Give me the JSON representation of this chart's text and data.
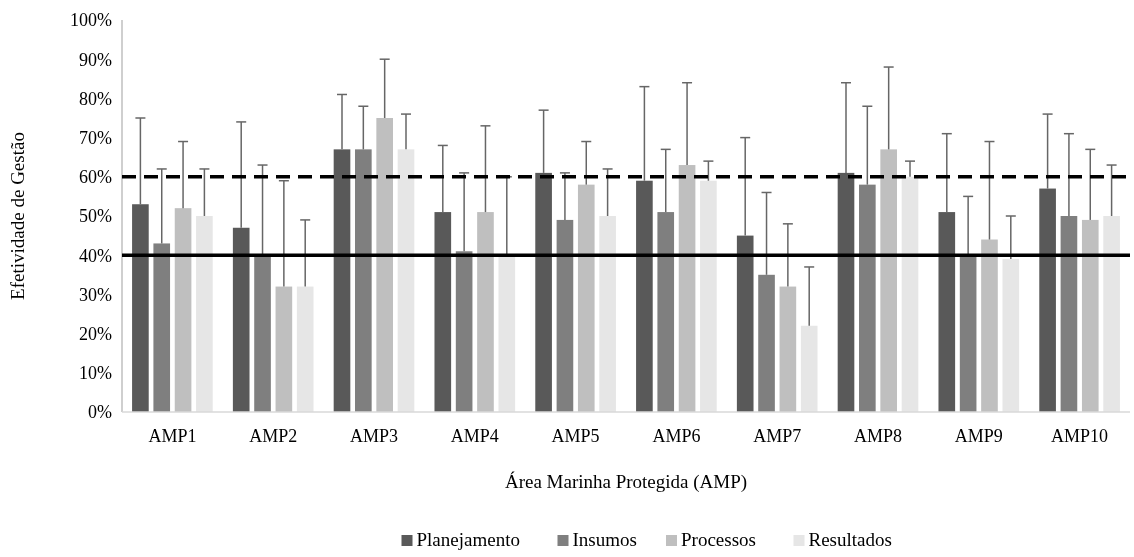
{
  "chart_data": {
    "type": "bar",
    "xlabel": "Área Marinha Protegida (AMP)",
    "ylabel": "Efetividade de Gestão",
    "categories": [
      "AMP1",
      "AMP2",
      "AMP3",
      "AMP4",
      "AMP5",
      "AMP6",
      "AMP7",
      "AMP8",
      "AMP9",
      "AMP10"
    ],
    "series": [
      {
        "name": "Planejamento",
        "color": "#595959",
        "values": [
          53,
          47,
          67,
          51,
          61,
          59,
          45,
          61,
          51,
          57
        ],
        "errors": [
          [
            53,
            75
          ],
          [
            47,
            74
          ],
          [
            67,
            81
          ],
          [
            51,
            68
          ],
          [
            61,
            77
          ],
          [
            59,
            83
          ],
          [
            45,
            70
          ],
          [
            61,
            84
          ],
          [
            51,
            71
          ],
          [
            57,
            76
          ]
        ]
      },
      {
        "name": "Insumos",
        "color": "#7f7f7f",
        "values": [
          43,
          40,
          67,
          41,
          49,
          51,
          35,
          58,
          40,
          50
        ],
        "errors": [
          [
            43,
            62
          ],
          [
            40,
            63
          ],
          [
            67,
            78
          ],
          [
            41,
            61
          ],
          [
            49,
            61
          ],
          [
            51,
            67
          ],
          [
            35,
            56
          ],
          [
            58,
            78
          ],
          [
            40,
            55
          ],
          [
            50,
            71
          ]
        ]
      },
      {
        "name": "Processos",
        "color": "#bfbfbf",
        "values": [
          52,
          32,
          75,
          51,
          58,
          63,
          32,
          67,
          44,
          49
        ],
        "errors": [
          [
            52,
            69
          ],
          [
            32,
            59
          ],
          [
            75,
            90
          ],
          [
            51,
            73
          ],
          [
            58,
            69
          ],
          [
            63,
            84
          ],
          [
            32,
            48
          ],
          [
            67,
            88
          ],
          [
            44,
            69
          ],
          [
            49,
            67
          ]
        ]
      },
      {
        "name": "Resultados",
        "color": "#e6e6e6",
        "values": [
          50,
          32,
          67,
          40,
          50,
          59,
          22,
          60,
          39,
          50
        ],
        "errors": [
          [
            50,
            62
          ],
          [
            32,
            49
          ],
          [
            67,
            76
          ],
          [
            40,
            60
          ],
          [
            50,
            62
          ],
          [
            59,
            64
          ],
          [
            22,
            37
          ],
          [
            60,
            64
          ],
          [
            39,
            50
          ],
          [
            50,
            63
          ]
        ]
      }
    ],
    "ylim": [
      0,
      100
    ],
    "yticks": [
      {
        "value": 0,
        "label": "0%"
      },
      {
        "value": 10,
        "label": "10%"
      },
      {
        "value": 20,
        "label": "20%"
      },
      {
        "value": 30,
        "label": "30%"
      },
      {
        "value": 40,
        "label": "40%"
      },
      {
        "value": 50,
        "label": "50%"
      },
      {
        "value": 60,
        "label": "60%"
      },
      {
        "value": 70,
        "label": "70%"
      },
      {
        "value": 80,
        "label": "80%"
      },
      {
        "value": 90,
        "label": "90%"
      },
      {
        "value": 100,
        "label": "100%"
      }
    ],
    "ref_lines": [
      {
        "axis": "y",
        "value": 60,
        "color": "#000000",
        "line_style": "dashed"
      },
      {
        "axis": "y",
        "value": 40,
        "color": "#000000",
        "line_style": "solid"
      }
    ],
    "legend": "bottom"
  }
}
